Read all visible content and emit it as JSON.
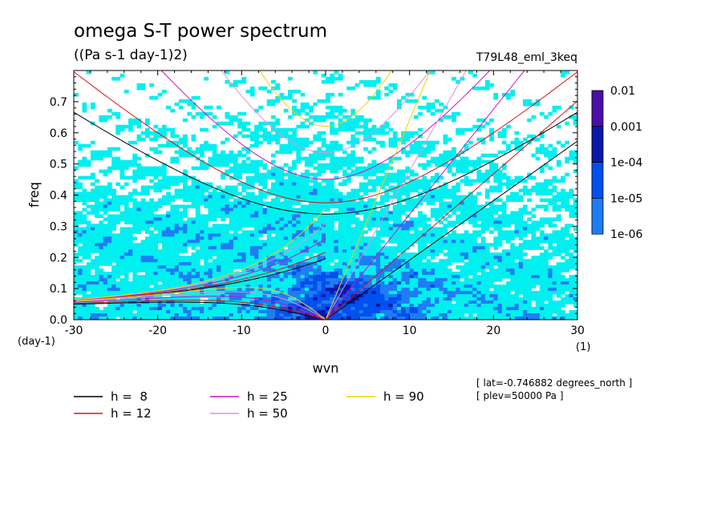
{
  "chart_data": {
    "type": "heatmap",
    "title": "omega S-T power spectrum",
    "subtitle": "((Pa s-1 day-1)2)",
    "run_label": "T79L48_eml_3keq",
    "xlabel": "wvn",
    "ylabel": "freq",
    "x_unit": "(1)",
    "y_unit": "(day-1)",
    "xlim": [
      -30,
      30
    ],
    "ylim": [
      0,
      0.8
    ],
    "x_ticks": [
      "-30",
      "-20",
      "-10",
      "0",
      "10",
      "20",
      "30"
    ],
    "y_ticks": [
      "0.0",
      "0.1",
      "0.2",
      "0.3",
      "0.4",
      "0.5",
      "0.6",
      "0.7"
    ],
    "colorbar": {
      "levels": [
        "0.01",
        "0.001",
        "1e-04",
        "1e-05",
        "1e-06"
      ],
      "colors": [
        "#4b0fa8",
        "#0a18a8",
        "#0050f0",
        "#1e7df5",
        "#00f0f0"
      ]
    },
    "dispersion_curves": [
      {
        "label": "h =  8",
        "h": 8,
        "color": "#000000"
      },
      {
        "label": "h = 12",
        "h": 12,
        "color": "#e01010"
      },
      {
        "label": "h = 25",
        "h": 25,
        "color": "#d010c0"
      },
      {
        "label": "h = 50",
        "h": 50,
        "color": "#e090e0"
      },
      {
        "label": "h = 90",
        "h": 90,
        "color": "#f0d000"
      }
    ],
    "annotations": [
      "[ lat=-0.746882 degrees_north ]",
      "[ plev=50000 Pa ]"
    ]
  }
}
